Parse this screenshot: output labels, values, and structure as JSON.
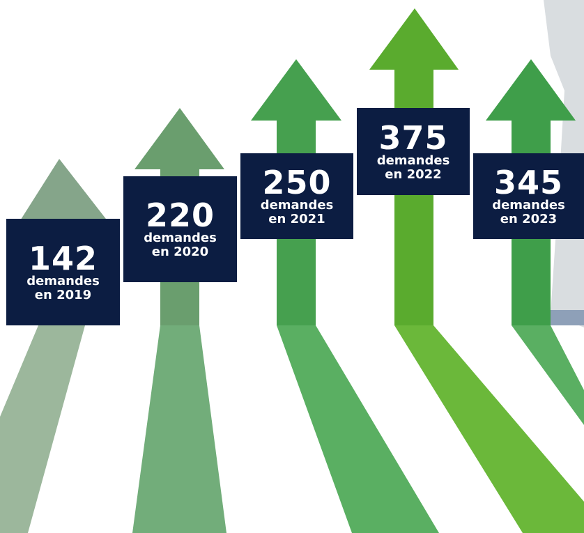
{
  "items": [
    {
      "number": 142,
      "line1": "demandes",
      "line2": "en 2019"
    },
    {
      "number": 220,
      "line1": "demandes",
      "line2": "en 2020"
    },
    {
      "number": 250,
      "line1": "demandes",
      "line2": "en 2021"
    },
    {
      "number": 375,
      "line1": "demandes",
      "line2": "en 2022"
    },
    {
      "number": 345,
      "line1": "demandes",
      "line2": "en 2023"
    }
  ]
}
